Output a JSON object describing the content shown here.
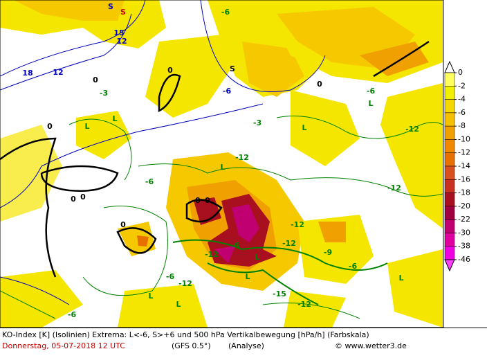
{
  "map": {
    "legend": {
      "levels": [
        0,
        -2,
        -4,
        -6,
        -8,
        -10,
        -12,
        -14,
        -16,
        -18,
        -20,
        -22,
        -30,
        -38,
        -46
      ],
      "colors": [
        "#ffff60",
        "#f0f000",
        "#f5d800",
        "#f5c000",
        "#f0a000",
        "#f08800",
        "#e87000",
        "#d85020",
        "#c83020",
        "#a81020",
        "#a00040",
        "#c00070",
        "#e000a0",
        "#f000e0",
        "#ff40ff"
      ]
    },
    "labels": [
      "S",
      "S",
      "15",
      "12",
      "18",
      "12",
      "-6",
      "0",
      "0",
      "S",
      "-6",
      "0",
      "-3",
      "L",
      "L",
      "0",
      "0",
      "0",
      "-3",
      "L",
      "L",
      "-6",
      "-12",
      "-12",
      "L",
      "-6",
      "0",
      "0",
      "0",
      "L",
      "-12",
      "-6",
      "-12",
      "-9",
      "-12",
      "-6",
      "-12",
      "-12",
      "L",
      "L",
      "-12",
      "-6",
      "-15",
      "-6",
      "L",
      "L"
    ]
  },
  "footer": {
    "line1": "KO-Index [K] (Isolinien) Extrema: L<-6, S>+6 und 500 hPa Vertikalbewegung [hPa/h] (Farbskala)",
    "date": "Donnerstag, 05-07-2018  12 UTC",
    "model": "(GFS 0.5°)",
    "run": "(Analyse)",
    "credit": "© www.wetter3.de"
  }
}
